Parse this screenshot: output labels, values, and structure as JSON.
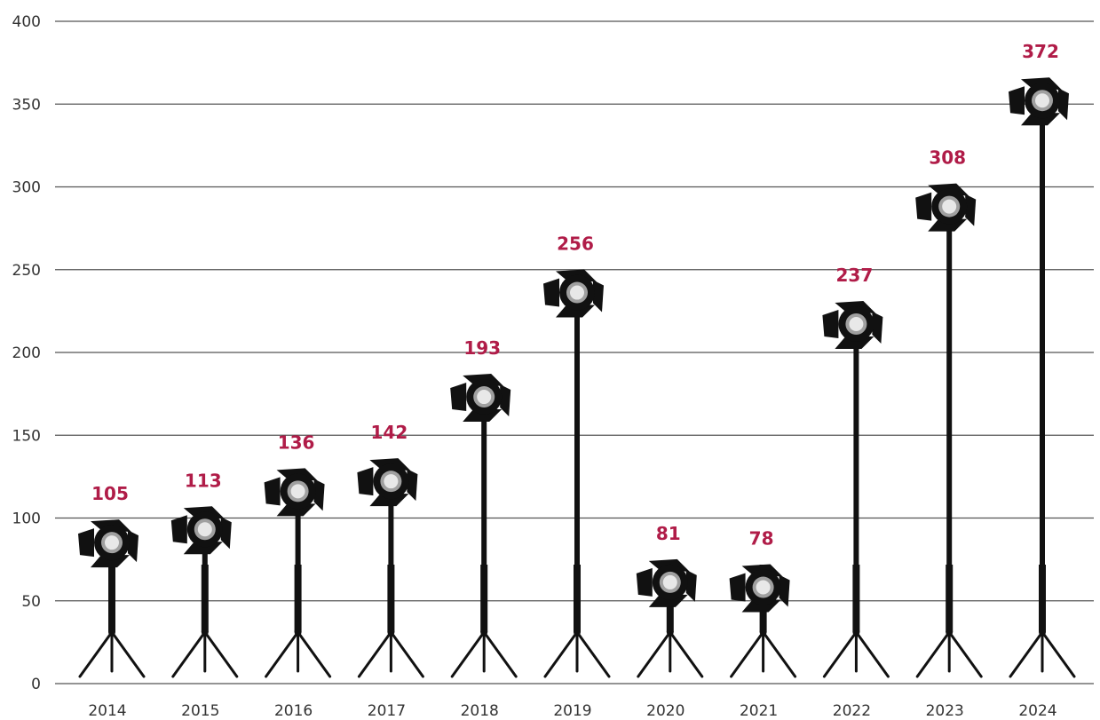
{
  "chart_data": {
    "type": "bar",
    "title": "",
    "xlabel": "",
    "ylabel": "",
    "categories": [
      "2014",
      "2015",
      "2016",
      "2017",
      "2018",
      "2019",
      "2020",
      "2021",
      "2022",
      "2023",
      "2024"
    ],
    "values": [
      105,
      113,
      136,
      142,
      193,
      256,
      81,
      78,
      237,
      308,
      372
    ],
    "value_labels": [
      "105",
      "113",
      "136",
      "142",
      "193",
      "256",
      "81",
      "78",
      "237",
      "308",
      "372"
    ],
    "ylim": [
      0,
      400
    ],
    "y_ticks": [
      "0",
      "50",
      "100",
      "150",
      "200",
      "250",
      "300",
      "350",
      "400"
    ],
    "grid": "horizontal",
    "legend": "none",
    "mark_style": "spotlight-on-tripod",
    "colors": {
      "value_label": "#b01c48",
      "gridline": "#555555",
      "mark": "#111111",
      "lens": "#e8e8e8"
    }
  }
}
